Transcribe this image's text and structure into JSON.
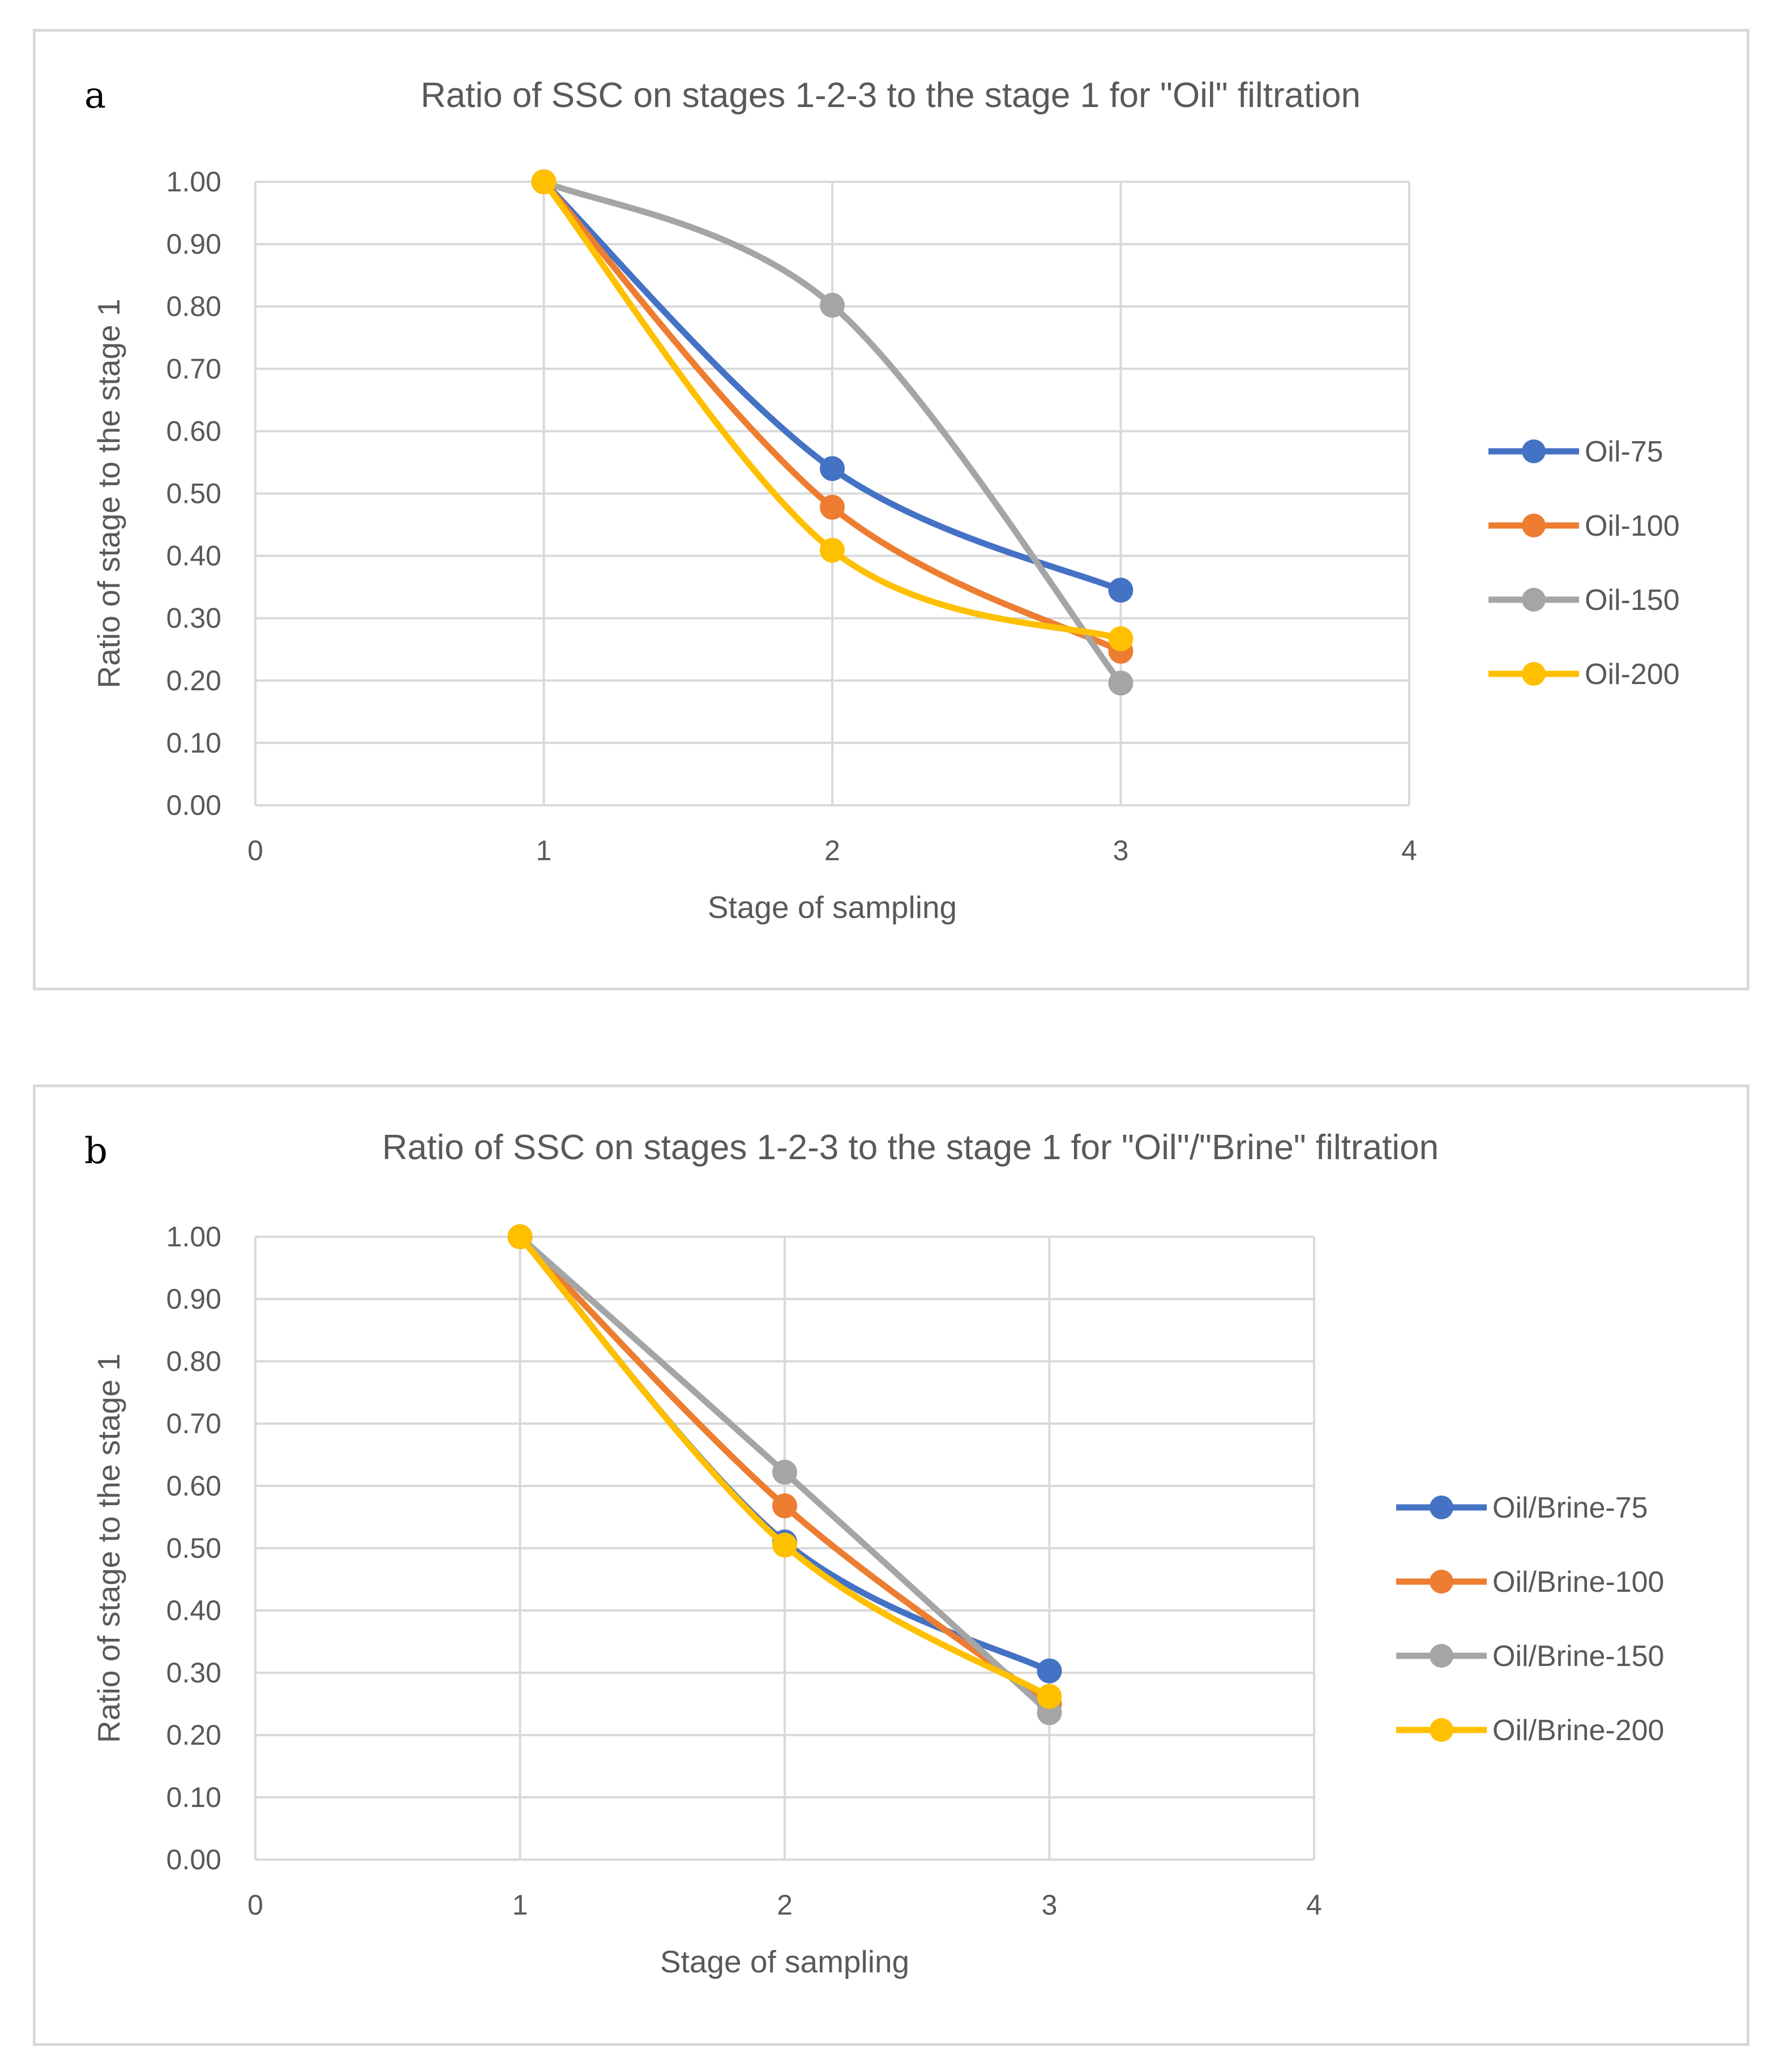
{
  "colors": {
    "blue": "#4472C4",
    "orange": "#ED7D31",
    "gray": "#A5A5A5",
    "yellow": "#FFC000",
    "grid": "#d9d9d9",
    "text": "#595959"
  },
  "panels": [
    {
      "letter": "a",
      "chart_data": {
        "type": "line",
        "smooth": true,
        "title": "Ratio of SSC on stages 1-2-3 to the stage 1 for \"Oil\" filtration",
        "xlabel": "Stage of sampling",
        "ylabel": "Ratio of stage to the stage 1",
        "xlim": [
          0,
          4
        ],
        "ylim": [
          0,
          1
        ],
        "xticks": [
          "0",
          "1",
          "2",
          "3",
          "4"
        ],
        "yticks": [
          "0.00",
          "0.10",
          "0.20",
          "0.30",
          "0.40",
          "0.50",
          "0.60",
          "0.70",
          "0.80",
          "0.90",
          "1.00"
        ],
        "grid": true,
        "legend": "right",
        "x": [
          1,
          2,
          3
        ],
        "series": [
          {
            "name": "Oil-75",
            "color": "#4472C4",
            "values": [
              1.0,
              0.54,
              0.345
            ]
          },
          {
            "name": "Oil-100",
            "color": "#ED7D31",
            "values": [
              1.0,
              0.478,
              0.247
            ]
          },
          {
            "name": "Oil-150",
            "color": "#A5A5A5",
            "values": [
              1.0,
              0.802,
              0.196
            ]
          },
          {
            "name": "Oil-200",
            "color": "#FFC000",
            "values": [
              1.0,
              0.409,
              0.267
            ]
          }
        ]
      }
    },
    {
      "letter": "b",
      "chart_data": {
        "type": "line",
        "smooth": true,
        "title": "Ratio of SSC on stages 1-2-3 to the stage 1 for \"Oil\"/\"Brine\" filtration",
        "xlabel": "Stage of sampling",
        "ylabel": "Ratio of stage to the stage 1",
        "xlim": [
          0,
          4
        ],
        "ylim": [
          0,
          1
        ],
        "xticks": [
          "0",
          "1",
          "2",
          "3",
          "4"
        ],
        "yticks": [
          "0.00",
          "0.10",
          "0.20",
          "0.30",
          "0.40",
          "0.50",
          "0.60",
          "0.70",
          "0.80",
          "0.90",
          "1.00"
        ],
        "grid": true,
        "legend": "right",
        "x": [
          1,
          2,
          3
        ],
        "series": [
          {
            "name": "Oil/Brine-75",
            "color": "#4472C4",
            "values": [
              1.0,
              0.51,
              0.303
            ]
          },
          {
            "name": "Oil/Brine-100",
            "color": "#ED7D31",
            "values": [
              1.0,
              0.568,
              0.25
            ]
          },
          {
            "name": "Oil/Brine-150",
            "color": "#A5A5A5",
            "values": [
              1.0,
              0.622,
              0.236
            ]
          },
          {
            "name": "Oil/Brine-200",
            "color": "#FFC000",
            "values": [
              1.0,
              0.505,
              0.262
            ]
          }
        ]
      }
    }
  ]
}
